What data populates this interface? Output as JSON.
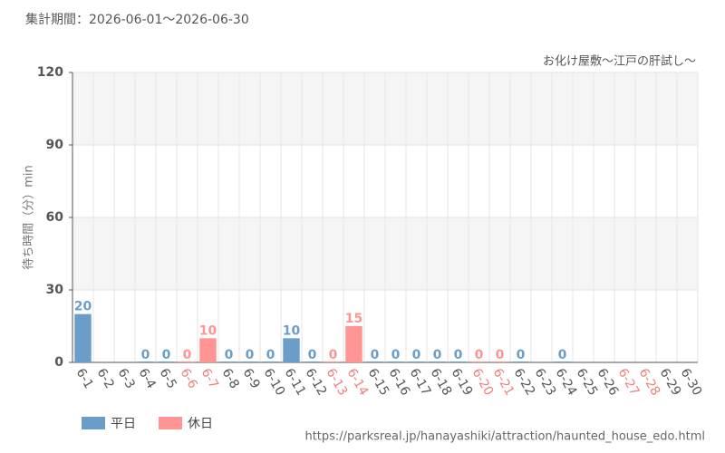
{
  "chart_data": {
    "type": "bar",
    "period": "集計期間：2026-06-01～2026-06-30",
    "title": "お化け屋敷～江戸の肝試し～",
    "ylabel": "待ち時間（分）min",
    "source": "https://parksreal.jp/hanayashiki/attraction/haunted_house_edo.html",
    "categories": [
      "6-1",
      "6-2",
      "6-3",
      "6-4",
      "6-5",
      "6-6",
      "6-7",
      "6-8",
      "6-9",
      "6-10",
      "6-11",
      "6-12",
      "6-13",
      "6-14",
      "6-15",
      "6-16",
      "6-17",
      "6-18",
      "6-19",
      "6-20",
      "6-21",
      "6-22",
      "6-23",
      "6-24",
      "6-25",
      "6-26",
      "6-27",
      "6-28",
      "6-29",
      "6-30"
    ],
    "category_colors": [
      "#555",
      "#555",
      "#555",
      "#555",
      "#555",
      "#f08080",
      "#f08080",
      "#555",
      "#555",
      "#555",
      "#555",
      "#555",
      "#f08080",
      "#f08080",
      "#555",
      "#555",
      "#555",
      "#555",
      "#555",
      "#f08080",
      "#f08080",
      "#555",
      "#555",
      "#555",
      "#555",
      "#555",
      "#f08080",
      "#f08080",
      "#555",
      "#555"
    ],
    "series": [
      {
        "name": "平日",
        "color": "#6a9ec8",
        "values": [
          20,
          null,
          null,
          0,
          0,
          null,
          null,
          0,
          0,
          0,
          10,
          0,
          null,
          null,
          0,
          0,
          0,
          0,
          0,
          null,
          null,
          0,
          null,
          0,
          null,
          null,
          null,
          null,
          null,
          null
        ]
      },
      {
        "name": "休日",
        "color": "#ff9494",
        "values": [
          null,
          null,
          null,
          null,
          null,
          0,
          10,
          null,
          null,
          null,
          null,
          null,
          0,
          15,
          null,
          null,
          null,
          null,
          null,
          0,
          0,
          null,
          null,
          null,
          null,
          null,
          null,
          null,
          null,
          null
        ]
      }
    ],
    "ylim": [
      0,
      120
    ],
    "yticks": [
      0,
      30,
      60,
      90,
      120
    ],
    "grid": true
  }
}
